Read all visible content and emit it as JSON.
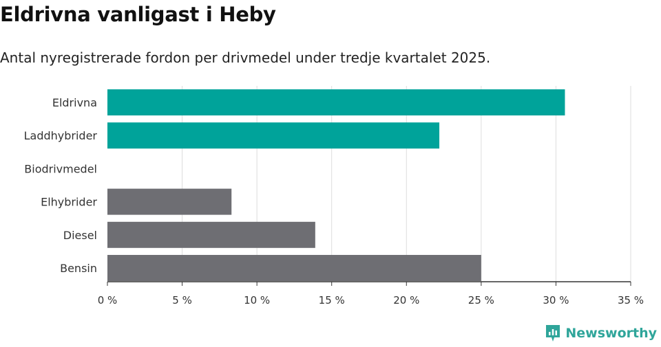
{
  "title": "Eldrivna vanligast i Heby",
  "subtitle": "Antal nyregistrerade fordon per drivmedel under tredje kvartalet 2025.",
  "brand": "Newsworthy",
  "colors": {
    "highlight": "#00a39a",
    "base": "#6e6e73",
    "grid": "#dddddd",
    "axis": "#333333",
    "brand": "#2fa59a"
  },
  "chart_data": {
    "type": "bar",
    "orientation": "horizontal",
    "title": "Eldrivna vanligast i Heby",
    "subtitle": "Antal nyregistrerade fordon per drivmedel under tredje kvartalet 2025.",
    "categories": [
      "Eldrivna",
      "Laddhybrider",
      "Biodrivmedel",
      "Elhybrider",
      "Diesel",
      "Bensin"
    ],
    "values": [
      30.6,
      22.2,
      0,
      8.3,
      13.9,
      25.0
    ],
    "highlight": [
      true,
      true,
      false,
      false,
      false,
      false
    ],
    "xlim": [
      0,
      35
    ],
    "ticks": [
      0,
      5,
      10,
      15,
      20,
      25,
      30,
      35
    ],
    "tick_labels": [
      "0 %",
      "5 %",
      "10 %",
      "15 %",
      "20 %",
      "25 %",
      "30 %",
      "35 %"
    ],
    "xlabel": "",
    "ylabel": "",
    "grid": true
  }
}
